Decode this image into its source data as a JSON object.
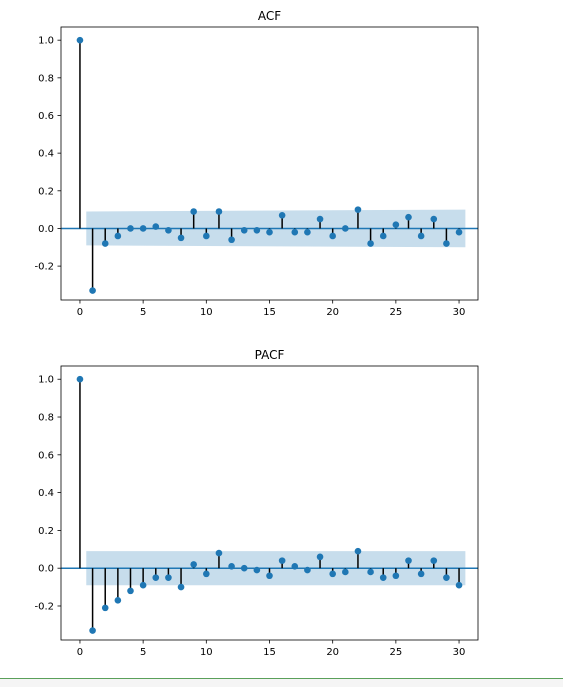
{
  "chart_data": [
    {
      "type": "stem",
      "title": "ACF",
      "xlabel": "",
      "ylabel": "",
      "xlim": [
        -1.5,
        31.5
      ],
      "ylim": [
        -0.38,
        1.07
      ],
      "xticks": [
        0,
        5,
        10,
        15,
        20,
        25,
        30
      ],
      "yticks": [
        -0.2,
        0.0,
        0.2,
        0.4,
        0.6,
        0.8,
        1.0
      ],
      "ytick_labels": [
        "-0.2",
        "0.0",
        "0.2",
        "0.4",
        "0.6",
        "0.8",
        "1.0"
      ],
      "grid": false,
      "confidence_band": {
        "x_start": 0.5,
        "x_end": 30.5,
        "upper": [
          0.09,
          0.1
        ],
        "lower": [
          -0.09,
          -0.1
        ]
      },
      "lags": [
        0,
        1,
        2,
        3,
        4,
        5,
        6,
        7,
        8,
        9,
        10,
        11,
        12,
        13,
        14,
        15,
        16,
        17,
        18,
        19,
        20,
        21,
        22,
        23,
        24,
        25,
        26,
        27,
        28,
        29,
        30
      ],
      "values": [
        1.0,
        -0.33,
        -0.08,
        -0.04,
        0.0,
        0.0,
        0.01,
        -0.01,
        -0.05,
        0.09,
        -0.04,
        0.09,
        -0.06,
        -0.01,
        -0.01,
        -0.02,
        0.07,
        -0.02,
        -0.02,
        0.05,
        -0.04,
        0.0,
        0.1,
        -0.08,
        -0.04,
        0.02,
        0.06,
        -0.04,
        0.05,
        -0.08,
        -0.02
      ]
    },
    {
      "type": "stem",
      "title": "PACF",
      "xlabel": "",
      "ylabel": "",
      "xlim": [
        -1.5,
        31.5
      ],
      "ylim": [
        -0.38,
        1.07
      ],
      "xticks": [
        0,
        5,
        10,
        15,
        20,
        25,
        30
      ],
      "yticks": [
        -0.2,
        0.0,
        0.2,
        0.4,
        0.6,
        0.8,
        1.0
      ],
      "ytick_labels": [
        "-0.2",
        "0.0",
        "0.2",
        "0.4",
        "0.6",
        "0.8",
        "1.0"
      ],
      "grid": false,
      "confidence_band": {
        "x_start": 0.5,
        "x_end": 30.5,
        "upper": [
          0.09,
          0.09
        ],
        "lower": [
          -0.09,
          -0.09
        ]
      },
      "lags": [
        0,
        1,
        2,
        3,
        4,
        5,
        6,
        7,
        8,
        9,
        10,
        11,
        12,
        13,
        14,
        15,
        16,
        17,
        18,
        19,
        20,
        21,
        22,
        23,
        24,
        25,
        26,
        27,
        28,
        29,
        30
      ],
      "values": [
        1.0,
        -0.33,
        -0.21,
        -0.17,
        -0.12,
        -0.09,
        -0.05,
        -0.05,
        -0.1,
        0.02,
        -0.03,
        0.08,
        0.01,
        0.0,
        -0.01,
        -0.04,
        0.04,
        0.01,
        -0.01,
        0.06,
        -0.03,
        -0.02,
        0.09,
        -0.02,
        -0.05,
        -0.04,
        0.04,
        -0.03,
        0.04,
        -0.05,
        -0.09
      ]
    }
  ],
  "colors": {
    "marker": "#1f77b4",
    "stem": "#000000",
    "band": "#1f77b4",
    "zero_line": "#1f77b4"
  }
}
